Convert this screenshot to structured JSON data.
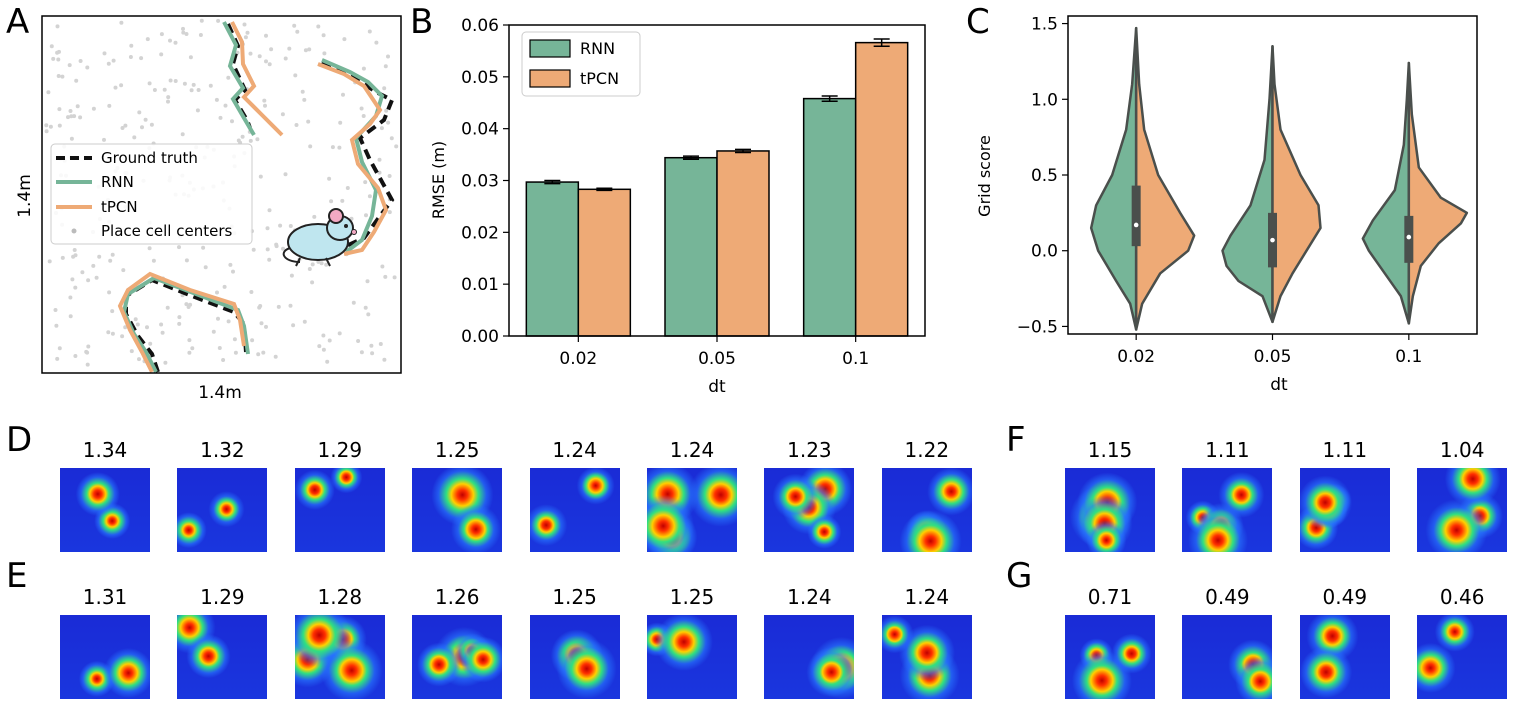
{
  "panels": {
    "a": "A",
    "b": "B",
    "c": "C",
    "d": "D",
    "e": "E",
    "f": "F",
    "g": "G"
  },
  "panel_a": {
    "legend": [
      "Ground truth",
      "RNN",
      "tPCN",
      "Place cell centers"
    ],
    "xlabel": "1.4m",
    "ylabel": "1.4m"
  },
  "colors": {
    "rnn": "#76b598",
    "tpcn": "#eeaa76",
    "ground_truth": "#111111",
    "place": "#d3d3d3"
  },
  "chart_data": [
    {
      "type": "bar",
      "title": "",
      "xlabel": "dt",
      "ylabel": "RMSE (m)",
      "ylim": [
        0,
        0.06
      ],
      "yticks": [
        "0.00",
        "0.01",
        "0.02",
        "0.03",
        "0.04",
        "0.05",
        "0.06"
      ],
      "categories": [
        "0.02",
        "0.05",
        "0.1"
      ],
      "series": [
        {
          "name": "RNN",
          "values": [
            0.0297,
            0.0344,
            0.0458
          ],
          "errors": [
            0.0003,
            0.0003,
            0.0005
          ]
        },
        {
          "name": "tPCN",
          "values": [
            0.0283,
            0.0357,
            0.0566
          ],
          "errors": [
            0.0002,
            0.0003,
            0.0007
          ]
        }
      ],
      "legend_position": "top-left"
    },
    {
      "type": "violin",
      "xlabel": "dt",
      "ylabel": "Grid score",
      "ylim": [
        -0.55,
        1.55
      ],
      "yticks": [
        "1.5",
        "1.0",
        "0.5",
        "0.0",
        "−0.5"
      ],
      "categories": [
        "0.02",
        "0.05",
        "0.1"
      ],
      "series_left": "RNN",
      "series_right": "tPCN",
      "medians": [
        0.17,
        0.07,
        0.09
      ],
      "quartiles": [
        [
          0.03,
          0.43
        ],
        [
          -0.11,
          0.25
        ],
        [
          -0.08,
          0.23
        ]
      ],
      "ranges": [
        [
          -0.52,
          1.47
        ],
        [
          -0.47,
          1.35
        ],
        [
          -0.48,
          1.24
        ]
      ]
    }
  ],
  "heatmap_rows": {
    "D": [
      "1.34",
      "1.32",
      "1.29",
      "1.25",
      "1.24",
      "1.24",
      "1.23",
      "1.22"
    ],
    "E": [
      "1.31",
      "1.29",
      "1.28",
      "1.26",
      "1.25",
      "1.25",
      "1.24",
      "1.24"
    ],
    "F": [
      "1.15",
      "1.11",
      "1.11",
      "1.04"
    ],
    "G": [
      "0.71",
      "0.49",
      "0.49",
      "0.46"
    ]
  }
}
